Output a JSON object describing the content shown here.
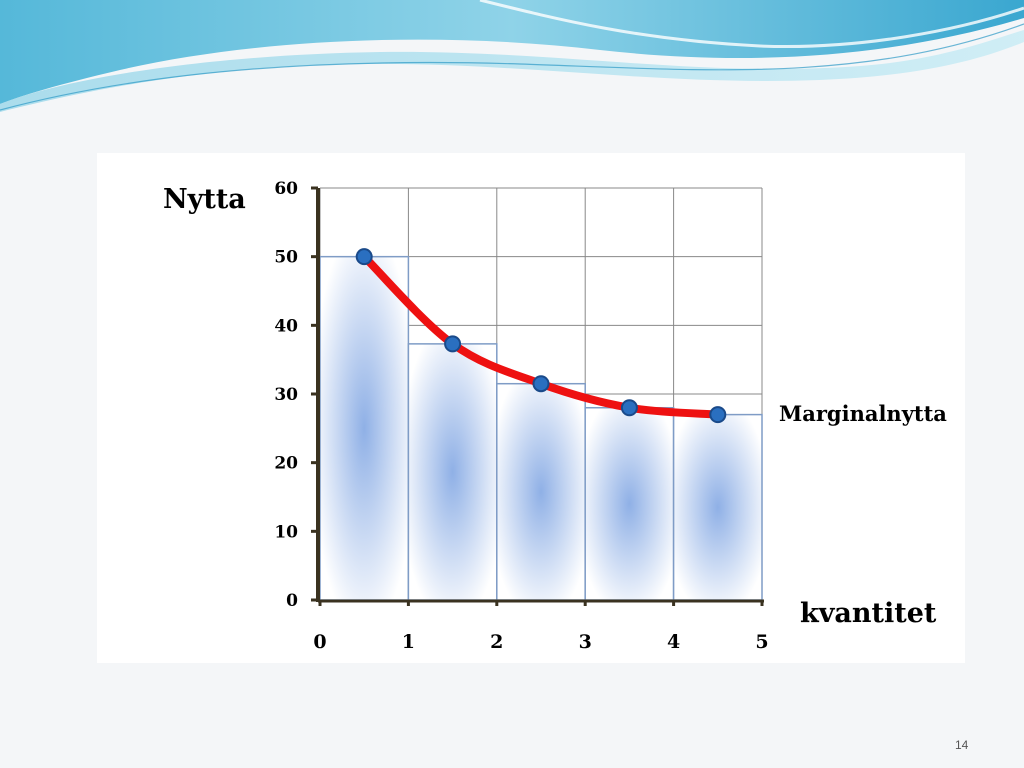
{
  "slide": {
    "page_number": "14"
  },
  "chart_data": {
    "type": "bar",
    "ylabel": "Nytta",
    "xlabel": "kvantitet",
    "series_label": "Marginalnytta",
    "x_ticks": [
      "0",
      "1",
      "2",
      "3",
      "4",
      "5"
    ],
    "y_ticks": [
      "0",
      "10",
      "20",
      "30",
      "40",
      "50",
      "60"
    ],
    "ylim": [
      0,
      60
    ],
    "xlim": [
      0,
      5
    ],
    "bars": [
      {
        "x_start": 0,
        "x_end": 1,
        "value": 50
      },
      {
        "x_start": 1,
        "x_end": 2,
        "value": 37.3
      },
      {
        "x_start": 2,
        "x_end": 3,
        "value": 31.5
      },
      {
        "x_start": 3,
        "x_end": 4,
        "value": 28
      },
      {
        "x_start": 4,
        "x_end": 5,
        "value": 27
      }
    ],
    "points": [
      {
        "x": 0.5,
        "y": 50
      },
      {
        "x": 1.5,
        "y": 37.3
      },
      {
        "x": 2.5,
        "y": 31.5
      },
      {
        "x": 3.5,
        "y": 28
      },
      {
        "x": 4.5,
        "y": 27
      }
    ],
    "grid": true,
    "colors": {
      "curve": "#ee1111",
      "point": "#2a6fc0",
      "point_edge": "#1a4a8a",
      "bar_edge": "#7f9cc6",
      "bar_center": "#8fb0e6",
      "axis": "#3a3220",
      "grid": "#888888"
    }
  }
}
